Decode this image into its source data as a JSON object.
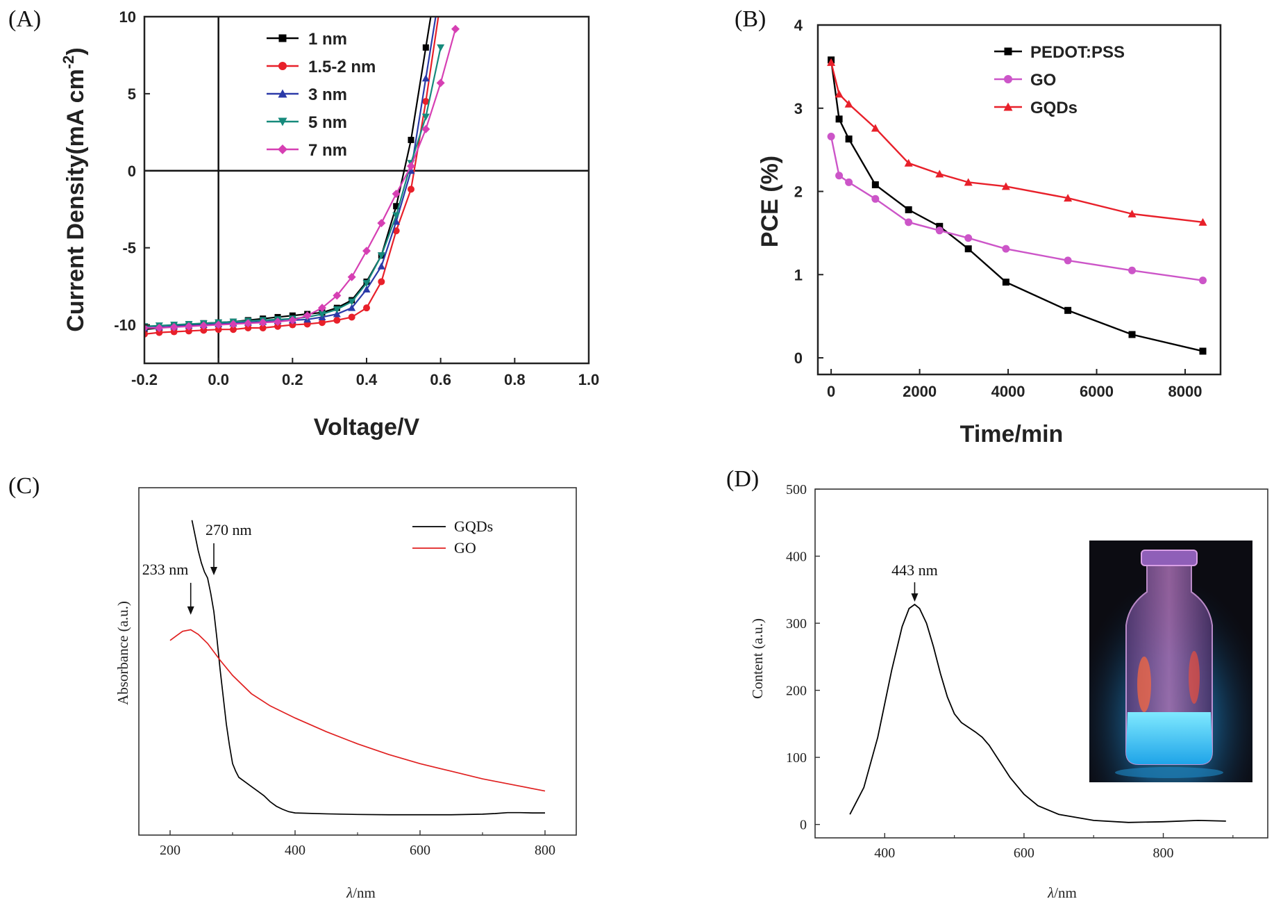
{
  "chart_data": [
    {
      "panel": "(A)",
      "type": "line",
      "xlabel": "Voltage/V",
      "ylabel": "Current Density(mA cm",
      "ylabel_sup": "-2",
      "ylabel_close": ")",
      "xlim": [
        -0.2,
        1.0
      ],
      "ylim": [
        -12.5,
        10
      ],
      "xticks": [
        -0.2,
        0.0,
        0.2,
        0.4,
        0.6,
        0.8,
        1.0
      ],
      "xtick_labels": [
        "-0.2",
        "0.0",
        "0.2",
        "0.4",
        "0.6",
        "0.8",
        "1.0"
      ],
      "yticks": [
        -10,
        -5,
        0,
        5,
        10
      ],
      "ytick_labels": [
        "-10",
        "-5",
        "0",
        "5",
        "10"
      ],
      "legend_position": "top-center",
      "series": [
        {
          "name": "1 nm",
          "color": "#000000",
          "marker": "square",
          "x": [
            -0.2,
            -0.16,
            -0.12,
            -0.08,
            -0.04,
            0.0,
            0.04,
            0.08,
            0.12,
            0.16,
            0.2,
            0.24,
            0.28,
            0.32,
            0.36,
            0.4,
            0.44,
            0.48,
            0.52,
            0.56,
            0.6
          ],
          "y": [
            -10.3,
            -10.2,
            -10.1,
            -10.0,
            -9.9,
            -9.85,
            -9.8,
            -9.7,
            -9.6,
            -9.5,
            -9.4,
            -9.3,
            -9.2,
            -8.9,
            -8.4,
            -7.2,
            -5.5,
            -2.3,
            2.0,
            8.0,
            14.0
          ]
        },
        {
          "name": "1.5-2 nm",
          "color": "#e8202a",
          "marker": "circle",
          "x": [
            -0.2,
            -0.16,
            -0.12,
            -0.08,
            -0.04,
            0.0,
            0.04,
            0.08,
            0.12,
            0.16,
            0.2,
            0.24,
            0.28,
            0.32,
            0.36,
            0.4,
            0.44,
            0.48,
            0.52,
            0.56,
            0.6
          ],
          "y": [
            -10.6,
            -10.5,
            -10.45,
            -10.4,
            -10.35,
            -10.3,
            -10.3,
            -10.2,
            -10.2,
            -10.1,
            -10.0,
            -9.95,
            -9.85,
            -9.7,
            -9.5,
            -8.9,
            -7.2,
            -3.9,
            -1.2,
            4.5,
            11.0
          ]
        },
        {
          "name": "3 nm",
          "color": "#2b3aa8",
          "marker": "triangle-up",
          "x": [
            -0.2,
            -0.16,
            -0.12,
            -0.08,
            -0.04,
            0.0,
            0.04,
            0.08,
            0.12,
            0.16,
            0.2,
            0.24,
            0.28,
            0.32,
            0.36,
            0.4,
            0.44,
            0.48,
            0.52,
            0.56,
            0.6
          ],
          "y": [
            -10.2,
            -10.15,
            -10.1,
            -10.05,
            -10.0,
            -9.95,
            -9.9,
            -9.85,
            -9.8,
            -9.75,
            -9.7,
            -9.65,
            -9.5,
            -9.3,
            -8.9,
            -7.7,
            -6.2,
            -3.3,
            0.0,
            6.0,
            12.0
          ]
        },
        {
          "name": "5 nm",
          "color": "#168a7c",
          "marker": "triangle-down",
          "x": [
            -0.2,
            -0.16,
            -0.12,
            -0.08,
            -0.04,
            0.0,
            0.04,
            0.08,
            0.12,
            0.16,
            0.2,
            0.24,
            0.28,
            0.32,
            0.36,
            0.4,
            0.44,
            0.48,
            0.52,
            0.56,
            0.6
          ],
          "y": [
            -10.1,
            -10.05,
            -10.0,
            -9.95,
            -9.9,
            -9.85,
            -9.8,
            -9.75,
            -9.7,
            -9.65,
            -9.6,
            -9.5,
            -9.3,
            -9.0,
            -8.5,
            -7.3,
            -5.5,
            -2.9,
            0.5,
            3.5,
            8.0
          ]
        },
        {
          "name": "7 nm",
          "color": "#d63fb3",
          "marker": "diamond",
          "x": [
            -0.2,
            -0.16,
            -0.12,
            -0.08,
            -0.04,
            0.0,
            0.04,
            0.08,
            0.12,
            0.16,
            0.2,
            0.24,
            0.28,
            0.32,
            0.36,
            0.4,
            0.44,
            0.48,
            0.52,
            0.56,
            0.6,
            0.64
          ],
          "y": [
            -10.2,
            -10.2,
            -10.15,
            -10.1,
            -10.05,
            -10.0,
            -9.95,
            -9.9,
            -9.85,
            -9.8,
            -9.7,
            -9.4,
            -8.9,
            -8.1,
            -6.9,
            -5.2,
            -3.4,
            -1.5,
            0.3,
            2.7,
            5.7,
            9.2
          ]
        }
      ]
    },
    {
      "panel": "(B)",
      "type": "line",
      "xlabel": "Time/min",
      "ylabel": "PCE (%)",
      "xlim": [
        -300,
        8800
      ],
      "ylim": [
        -0.2,
        4
      ],
      "xticks": [
        0,
        2000,
        4000,
        6000,
        8000
      ],
      "xtick_labels": [
        "0",
        "2000",
        "4000",
        "6000",
        "8000"
      ],
      "yticks": [
        0,
        1,
        2,
        3,
        4
      ],
      "ytick_labels": [
        "0",
        "1",
        "2",
        "3",
        "4"
      ],
      "legend_position": "top-right",
      "series": [
        {
          "name": "PEDOT:PSS",
          "color": "#000000",
          "marker": "square",
          "x": [
            0,
            180,
            400,
            1000,
            1750,
            2450,
            3100,
            3950,
            5350,
            6800,
            8400
          ],
          "y": [
            3.58,
            2.87,
            2.63,
            2.08,
            1.78,
            1.58,
            1.31,
            0.91,
            0.57,
            0.28,
            0.08
          ]
        },
        {
          "name": "GO",
          "color": "#cc55c8",
          "marker": "circle",
          "x": [
            0,
            180,
            400,
            1000,
            1750,
            2450,
            3100,
            3950,
            5350,
            6800,
            8400
          ],
          "y": [
            2.66,
            2.19,
            2.11,
            1.91,
            1.63,
            1.53,
            1.44,
            1.31,
            1.17,
            1.05,
            0.93
          ]
        },
        {
          "name": "GQDs",
          "color": "#e8202a",
          "marker": "triangle-up",
          "x": [
            0,
            180,
            400,
            1000,
            1750,
            2450,
            3100,
            3950,
            5350,
            6800,
            8400
          ],
          "y": [
            3.55,
            3.17,
            3.05,
            2.76,
            2.34,
            2.21,
            2.11,
            2.06,
            1.92,
            1.73,
            1.63
          ]
        }
      ]
    },
    {
      "panel": "(C)",
      "type": "line",
      "xlabel": "λ/nm",
      "xlabel_italic": "λ",
      "xlabel_rest": "/nm",
      "ylabel": "Absorbance (a.u.)",
      "xlim": [
        150,
        850
      ],
      "ylim": [
        0,
        1
      ],
      "xticks": [
        200,
        400,
        600,
        800
      ],
      "xtick_labels": [
        "200",
        "400",
        "600",
        "800"
      ],
      "legend_position": "top-right",
      "annotations": [
        {
          "text": "270 nm",
          "x": 270,
          "y": 0.79
        },
        {
          "text": "233 nm",
          "x": 233,
          "y": 0.66
        }
      ],
      "series": [
        {
          "name": "GQDs",
          "color": "#000000",
          "x": [
            235,
            240,
            245,
            250,
            255,
            260,
            265,
            270,
            275,
            280,
            285,
            290,
            295,
            300,
            305,
            310,
            320,
            330,
            340,
            350,
            360,
            370,
            380,
            390,
            400,
            450,
            500,
            550,
            600,
            650,
            700,
            720,
            740,
            760,
            780,
            800
          ],
          "y": [
            0.98,
            0.93,
            0.88,
            0.84,
            0.81,
            0.79,
            0.74,
            0.68,
            0.59,
            0.49,
            0.4,
            0.31,
            0.24,
            0.18,
            0.155,
            0.135,
            0.12,
            0.105,
            0.09,
            0.075,
            0.055,
            0.04,
            0.03,
            0.022,
            0.018,
            0.015,
            0.013,
            0.012,
            0.012,
            0.012,
            0.014,
            0.016,
            0.019,
            0.019,
            0.018,
            0.018
          ]
        },
        {
          "name": "GO",
          "color": "#e02020",
          "x": [
            200,
            210,
            220,
            233,
            245,
            260,
            280,
            300,
            330,
            360,
            400,
            450,
            500,
            550,
            600,
            650,
            700,
            750,
            800
          ],
          "y": [
            0.585,
            0.6,
            0.615,
            0.62,
            0.605,
            0.575,
            0.52,
            0.47,
            0.41,
            0.37,
            0.33,
            0.285,
            0.245,
            0.21,
            0.18,
            0.155,
            0.13,
            0.11,
            0.09
          ]
        }
      ]
    },
    {
      "panel": "(D)",
      "type": "line",
      "xlabel": "λ/nm",
      "xlabel_italic": "λ",
      "xlabel_rest": "/nm",
      "ylabel": "Content (a.u.)",
      "xlim": [
        300,
        950
      ],
      "ylim": [
        -20,
        500
      ],
      "xticks": [
        400,
        600,
        800
      ],
      "xtick_labels": [
        "400",
        "600",
        "800"
      ],
      "yticks": [
        0,
        100,
        200,
        300,
        400,
        500
      ],
      "ytick_labels": [
        "0",
        "100",
        "200",
        "300",
        "400",
        "500"
      ],
      "annotations": [
        {
          "text": "443 nm",
          "x": 443,
          "y": 330
        }
      ],
      "inset": "photograph of a glass vial glowing blue under UV light",
      "series": [
        {
          "name": "",
          "color": "#000000",
          "x": [
            350,
            370,
            390,
            410,
            425,
            435,
            443,
            450,
            460,
            470,
            480,
            490,
            500,
            510,
            520,
            530,
            540,
            550,
            560,
            570,
            580,
            600,
            620,
            650,
            700,
            750,
            800,
            850,
            890
          ],
          "y": [
            15,
            55,
            130,
            230,
            295,
            322,
            328,
            322,
            300,
            265,
            225,
            190,
            165,
            152,
            145,
            138,
            130,
            118,
            102,
            86,
            70,
            45,
            28,
            15,
            6,
            3,
            4,
            6,
            5
          ]
        }
      ]
    }
  ]
}
